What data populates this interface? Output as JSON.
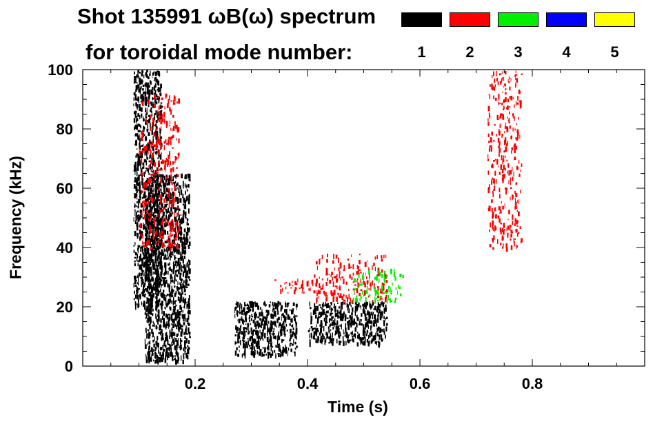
{
  "chart_data": {
    "type": "heatmap",
    "title_line1": "Shot 135991 ωB(ω) spectrum",
    "title_line2": "for toroidal mode number:",
    "xlabel": "Time (s)",
    "ylabel": "Frequency (kHz)",
    "xlim": [
      0.0,
      1.0
    ],
    "ylim": [
      0,
      100
    ],
    "x_ticks": [
      0.2,
      0.4,
      0.6,
      0.8
    ],
    "x_tick_labels": [
      "0.2",
      "0.4",
      "0.6",
      "0.8"
    ],
    "y_ticks": [
      0,
      20,
      40,
      60,
      80,
      100
    ],
    "y_tick_labels": [
      "0",
      "20",
      "40",
      "60",
      "80",
      "100"
    ],
    "legend": [
      {
        "label": "1",
        "color": "#000000"
      },
      {
        "label": "2",
        "color": "#ff0000"
      },
      {
        "label": "3",
        "color": "#00ee00"
      },
      {
        "label": "4",
        "color": "#0000ff"
      },
      {
        "label": "5",
        "color": "#ffff00"
      }
    ],
    "mode_regions": [
      {
        "mode": 1,
        "t_range": [
          0.09,
          0.14
        ],
        "f_range": [
          20,
          100
        ]
      },
      {
        "mode": 1,
        "t_range": [
          0.11,
          0.19
        ],
        "f_range": [
          2,
          65
        ]
      },
      {
        "mode": 1,
        "t_range": [
          0.27,
          0.38
        ],
        "f_range": [
          4,
          22
        ]
      },
      {
        "mode": 1,
        "t_range": [
          0.4,
          0.54
        ],
        "f_range": [
          8,
          22
        ]
      },
      {
        "mode": 2,
        "t_range": [
          0.1,
          0.17
        ],
        "f_range": [
          40,
          92
        ]
      },
      {
        "mode": 2,
        "t_range": [
          0.34,
          0.42
        ],
        "f_range": [
          25,
          30
        ]
      },
      {
        "mode": 2,
        "t_range": [
          0.41,
          0.54
        ],
        "f_range": [
          22,
          38
        ]
      },
      {
        "mode": 3,
        "t_range": [
          0.48,
          0.57
        ],
        "f_range": [
          22,
          33
        ]
      },
      {
        "mode": 2,
        "t_range": [
          0.72,
          0.78
        ],
        "f_range": [
          40,
          100
        ]
      }
    ]
  }
}
